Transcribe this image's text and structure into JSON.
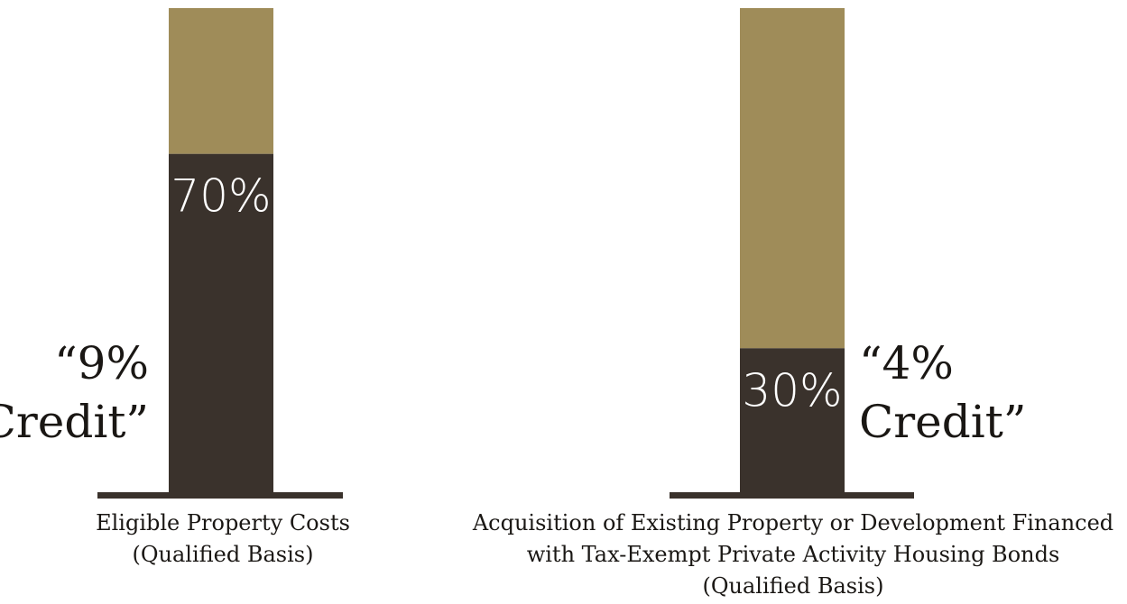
{
  "chart_data": {
    "type": "bar",
    "stacked": true,
    "ylim": [
      0,
      100
    ],
    "colors": {
      "credit": "#3a322c",
      "remainder": "#9f8c59",
      "baseline": "#3a322c"
    },
    "bars": [
      {
        "category_lines": [
          "Eligible Property Costs",
          "(Qualified Basis)"
        ],
        "value": 70,
        "value_label": "70%",
        "credit_lines": [
          "“9%",
          "Credit”"
        ]
      },
      {
        "category_lines": [
          "Acquisition of Existing Property or Development Financed",
          "with Tax-Exempt Private Activity Housing Bonds",
          "(Qualified Basis)"
        ],
        "value": 30,
        "value_label": "30%",
        "credit_lines": [
          "“4%",
          "Credit”"
        ]
      }
    ]
  }
}
